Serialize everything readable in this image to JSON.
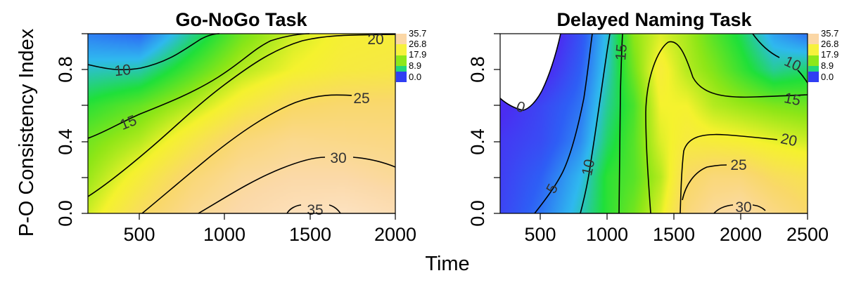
{
  "figure": {
    "xlabel": "Time",
    "ylabel": "P-O Consistency Index"
  },
  "colors": {
    "scale": [
      "#4b2df2",
      "#2e5ff5",
      "#2fb9ef",
      "#1fe03a",
      "#8ee617",
      "#f5f22e",
      "#f9d86a",
      "#fbd9a8",
      "#fde3c3"
    ],
    "contour_line": "#000000"
  },
  "chart_data": [
    {
      "type": "heatmap",
      "title": "Go-NoGo Task",
      "xlabel": "Time",
      "ylabel": "P-O Consistency Index",
      "xlim": [
        200,
        2000
      ],
      "ylim": [
        0.0,
        1.0
      ],
      "x_ticks": [
        "500",
        "1000",
        "1500",
        "2000"
      ],
      "y_ticks": [
        "0.0",
        "0.4",
        "0.8"
      ],
      "z_range": [
        0.0,
        35.7
      ],
      "legend": {
        "placement": "right",
        "values": [
          "35.7",
          "26.8",
          "17.9",
          "8.9",
          "0.0"
        ]
      },
      "contour_labels": [
        "10",
        "15",
        "20",
        "25",
        "30",
        "35"
      ],
      "z_grid": {
        "x": [
          200,
          500,
          800,
          1100,
          1400,
          1700,
          2000
        ],
        "y": [
          0.0,
          0.2,
          0.4,
          0.6,
          0.8,
          1.0
        ],
        "z": [
          [
            18.5,
            24.0,
            28.5,
            31.5,
            34.0,
            35.2,
            33.0
          ],
          [
            16.5,
            21.0,
            26.0,
            29.5,
            31.0,
            31.0,
            29.5
          ],
          [
            15.0,
            17.5,
            22.0,
            26.5,
            28.5,
            28.0,
            27.5
          ],
          [
            12.5,
            14.5,
            17.5,
            21.5,
            24.5,
            25.5,
            25.5
          ],
          [
            9.0,
            9.5,
            13.5,
            17.5,
            20.0,
            21.5,
            22.0
          ],
          [
            5.5,
            4.5,
            10.0,
            15.0,
            18.5,
            20.5,
            21.0
          ]
        ]
      }
    },
    {
      "type": "heatmap",
      "title": "Delayed Naming Task",
      "xlabel": "Time",
      "ylabel": "P-O Consistency Index",
      "xlim": [
        200,
        2500
      ],
      "ylim": [
        0.0,
        1.0
      ],
      "x_ticks": [
        "500",
        "1000",
        "1500",
        "2000",
        "2500"
      ],
      "y_ticks": [
        "0.0",
        "0.4",
        "0.8"
      ],
      "z_range": [
        0.0,
        35.7
      ],
      "legend": {
        "placement": "right",
        "values": [
          "35.7",
          "26.8",
          "17.9",
          "8.9",
          "0.0"
        ]
      },
      "contour_labels": [
        "0",
        "5",
        "10",
        "15",
        "15",
        "20",
        "25",
        "30",
        "10"
      ],
      "z_grid": {
        "x": [
          200,
          500,
          800,
          1000,
          1200,
          1400,
          1600,
          1800,
          2000,
          2250,
          2500
        ],
        "y": [
          0.0,
          0.2,
          0.4,
          0.6,
          0.8,
          1.0
        ],
        "z": [
          [
            2.0,
            5.0,
            9.0,
            12.5,
            15.0,
            19.0,
            26.5,
            29.5,
            31.0,
            27.5,
            25.0
          ],
          [
            1.5,
            4.0,
            8.0,
            12.5,
            14.0,
            17.5,
            24.5,
            26.5,
            26.5,
            24.0,
            23.0
          ],
          [
            1.0,
            2.5,
            6.0,
            11.0,
            14.0,
            19.0,
            21.5,
            21.0,
            20.5,
            19.5,
            18.5
          ],
          [
            -0.5,
            2.0,
            5.0,
            10.0,
            13.5,
            20.0,
            20.0,
            17.5,
            16.5,
            15.5,
            15.0
          ],
          [
            -3.0,
            -1.0,
            4.0,
            9.0,
            15.0,
            21.0,
            17.5,
            15.5,
            13.0,
            10.0,
            11.0
          ],
          [
            -6.0,
            -3.0,
            3.0,
            8.5,
            16.0,
            19.0,
            17.0,
            14.0,
            11.5,
            7.0,
            5.0
          ]
        ]
      }
    }
  ]
}
